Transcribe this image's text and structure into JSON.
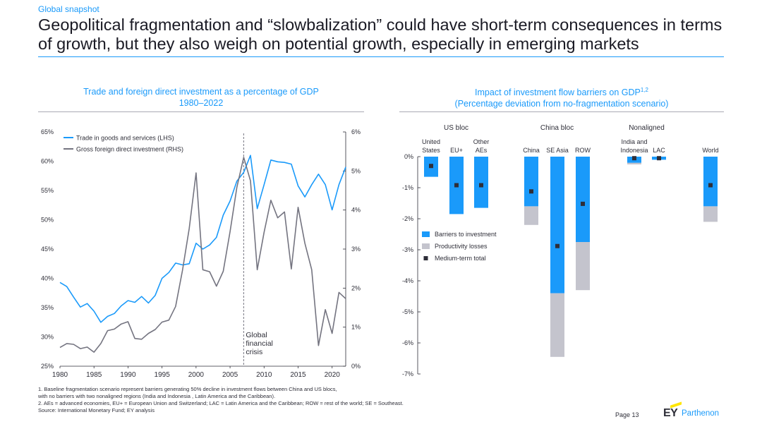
{
  "header": {
    "section_label": "Global snapshot",
    "headline": "Geopolitical fragmentation and “slowbalization” could have short-term consequences in terms of growth, but they also weigh on potential growth, especially in emerging markets"
  },
  "colors": {
    "accent": "#1a9afa",
    "series_blue": "#1a9afa",
    "series_grey": "#747480",
    "productivity": "#c4c4cd",
    "marker": "#2e2e38"
  },
  "chart_data": [
    {
      "type": "line",
      "title": "Trade and foreign direct investment as a percentage of GDP",
      "subtitle": "1980–2022",
      "x": [
        1980,
        1981,
        1982,
        1983,
        1984,
        1985,
        1986,
        1987,
        1988,
        1989,
        1990,
        1991,
        1992,
        1993,
        1994,
        1995,
        1996,
        1997,
        1998,
        1999,
        2000,
        2001,
        2002,
        2003,
        2004,
        2005,
        2006,
        2007,
        2008,
        2009,
        2010,
        2011,
        2012,
        2013,
        2014,
        2015,
        2016,
        2017,
        2018,
        2019,
        2020,
        2021,
        2022
      ],
      "xticks": [
        "1980",
        "1985",
        "1990",
        "1995",
        "2000",
        "2005",
        "2010",
        "2015",
        "2020"
      ],
      "yticks_left": [
        "25%",
        "30%",
        "35%",
        "40%",
        "45%",
        "50%",
        "55%",
        "60%",
        "65%"
      ],
      "yticks_right": [
        "0%",
        "1%",
        "2%",
        "3%",
        "4%",
        "5%",
        "6%"
      ],
      "ylim_left": [
        25,
        65
      ],
      "ylim_right": [
        0,
        6
      ],
      "series": [
        {
          "name": "Trade in goods and services (LHS)",
          "axis": "left",
          "values": [
            39.3,
            38.6,
            36.8,
            35.1,
            35.7,
            34.4,
            32.5,
            33.5,
            34.0,
            35.3,
            36.2,
            35.9,
            36.9,
            35.8,
            37.1,
            40.0,
            41.0,
            42.6,
            42.3,
            42.5,
            46.0,
            45.0,
            45.7,
            47.0,
            50.8,
            53.2,
            56.6,
            58.1,
            61.0,
            51.9,
            56.0,
            60.2,
            59.9,
            59.8,
            59.5,
            55.8,
            53.9,
            56.0,
            57.8,
            56.0,
            51.7,
            56.0,
            59.0
          ]
        },
        {
          "name": "Gross foreign direct investment (RHS)",
          "axis": "right",
          "values": [
            0.48,
            0.58,
            0.56,
            0.45,
            0.49,
            0.36,
            0.58,
            0.91,
            0.95,
            1.08,
            1.14,
            0.71,
            0.69,
            0.84,
            0.94,
            1.13,
            1.18,
            1.53,
            2.45,
            3.53,
            4.95,
            2.47,
            2.42,
            2.05,
            2.43,
            3.45,
            4.58,
            5.35,
            4.75,
            2.47,
            3.43,
            4.25,
            3.8,
            3.95,
            2.49,
            4.07,
            3.15,
            2.47,
            0.53,
            1.45,
            0.84,
            1.89,
            1.73
          ]
        }
      ],
      "annotation": {
        "x": 2007,
        "label_lines": [
          "Global",
          "financial",
          "crisis"
        ]
      }
    },
    {
      "type": "bar",
      "title": "Impact of investment flow barriers on GDP",
      "title_superscript": "1,2",
      "subtitle": "(Percentage deviation from no-fragmentation scenario)",
      "groups": [
        {
          "label": "US bloc",
          "categories": [
            0,
            1,
            2
          ]
        },
        {
          "label": "China bloc",
          "categories": [
            3,
            4,
            5
          ]
        },
        {
          "label": "Nonaligned",
          "categories": [
            6,
            7
          ]
        }
      ],
      "categories": [
        {
          "lines": [
            "United",
            "States"
          ]
        },
        {
          "lines": [
            "EU+"
          ]
        },
        {
          "lines": [
            "Other",
            "AEs"
          ]
        },
        {
          "lines": [
            "China"
          ]
        },
        {
          "lines": [
            "SE Asia"
          ]
        },
        {
          "lines": [
            "ROW"
          ]
        },
        {
          "lines": [
            "India and",
            "Indonesia"
          ]
        },
        {
          "lines": [
            "LAC"
          ]
        },
        {
          "lines": [
            "World"
          ]
        }
      ],
      "yticks": [
        "0%",
        "-1%",
        "-2%",
        "-3%",
        "-4%",
        "-5%",
        "-6%",
        "-7%"
      ],
      "ylim": [
        -7,
        0
      ],
      "series": [
        {
          "name": "Barriers to investment",
          "values": [
            -0.65,
            -1.85,
            -1.65,
            -1.6,
            -4.4,
            -2.75,
            -0.2,
            -0.1,
            -1.6
          ]
        },
        {
          "name": "Productivity losses",
          "values": [
            0,
            0,
            0,
            -0.6,
            -2.05,
            -1.55,
            -0.05,
            0,
            -0.5
          ]
        },
        {
          "name": "Medium-term total",
          "values": [
            -0.3,
            -0.92,
            -0.92,
            -1.12,
            -2.88,
            -1.52,
            -0.05,
            -0.05,
            -0.92
          ]
        }
      ]
    }
  ],
  "footnotes": {
    "note1_line1": "1.   Baseline fragmentation scenario represent barriers generating 50% decline in investment flows between China and US blocs,",
    "note1_line2": "      with no barriers with two nonaligned regions (India and Indonesia , Latin America and the Caribbean).",
    "note2": "2.   AEs = advanced economies, EU+ = European Union and Switzerland; LAC = Latin America and the Caribbean; ROW = rest of the world; SE = Southeast.",
    "source": "Source: International Monetary Fund; EY analysis"
  },
  "page_number": "Page 13",
  "logo": {
    "mark": "EY",
    "brand": "Parthenon"
  }
}
